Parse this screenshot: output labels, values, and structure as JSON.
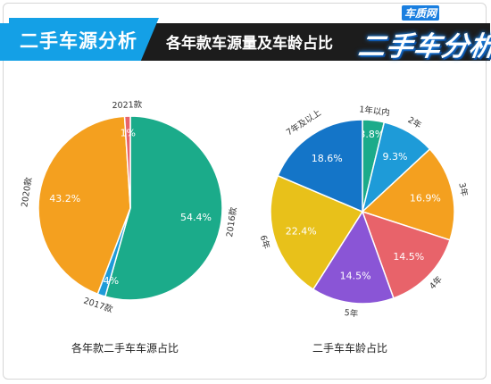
{
  "header": {
    "title": "二手车源分析",
    "subtitle": "各年款车源量及车龄占比",
    "logo_brand": "车质网",
    "logo_text": "二手车分析",
    "colors": {
      "band": "#1c1c1c",
      "tab": "#14a0e6"
    }
  },
  "chart_data": [
    {
      "type": "pie",
      "caption": "各年款二手车车源占比",
      "slices": [
        {
          "label": "2016款",
          "value": 54.4,
          "value_label": "54.4%",
          "color": "#1bab8a"
        },
        {
          "label": "2017款",
          "value": 1.4,
          "value_label": "1.4%",
          "color": "#1e9bd8"
        },
        {
          "label": "2020款",
          "value": 43.2,
          "value_label": "43.2%",
          "color": "#f4a01f"
        },
        {
          "label": "2021款",
          "value": 1.0,
          "value_label": "1%",
          "color": "#e8636a"
        }
      ]
    },
    {
      "type": "pie",
      "caption": "二手车车龄占比",
      "slices": [
        {
          "label": "1年以内",
          "value": 3.8,
          "value_label": "3.8%",
          "color": "#1bab8a"
        },
        {
          "label": "2年",
          "value": 9.3,
          "value_label": "9.3%",
          "color": "#1e9bd8"
        },
        {
          "label": "3年",
          "value": 16.9,
          "value_label": "16.9%",
          "color": "#f4a01f"
        },
        {
          "label": "4年",
          "value": 14.5,
          "value_label": "14.5%",
          "color": "#e8636a"
        },
        {
          "label": "5年",
          "value": 14.5,
          "value_label": "14.5%",
          "color": "#8a55d6"
        },
        {
          "label": "6年",
          "value": 22.4,
          "value_label": "22.4%",
          "color": "#e8c11a"
        },
        {
          "label": "7年及以上",
          "value": 18.6,
          "value_label": "18.6%",
          "color": "#1475c8"
        }
      ]
    }
  ]
}
